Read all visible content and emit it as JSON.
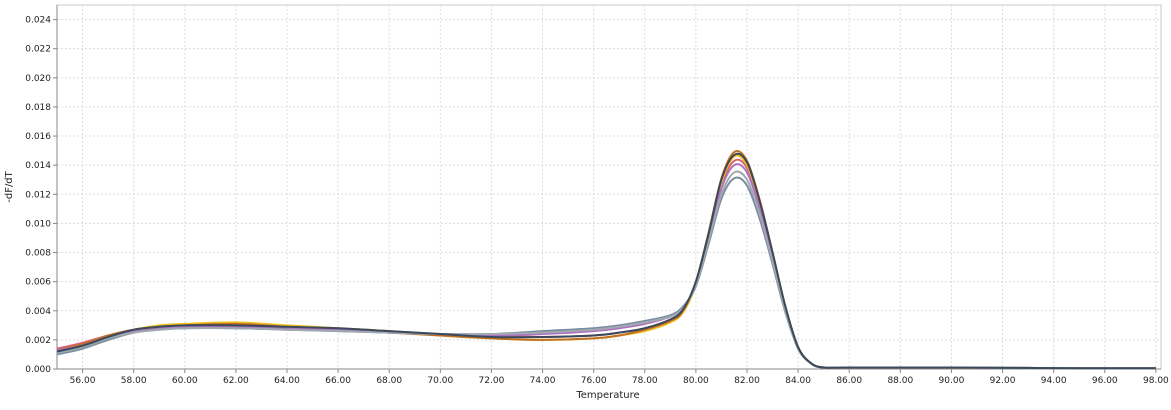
{
  "chart_data": {
    "type": "line",
    "title": "",
    "xlabel": "Temperature",
    "ylabel": "-dF/dT",
    "xlim": [
      55.0,
      98.2
    ],
    "ylim": [
      0.0,
      0.025
    ],
    "x_ticks": [
      56,
      58,
      60,
      62,
      64,
      66,
      68,
      70,
      72,
      74,
      76,
      78,
      80,
      82,
      84,
      86,
      88,
      90,
      92,
      94,
      96,
      98
    ],
    "x_tick_labels": [
      "56.00",
      "58.00",
      "60.00",
      "62.00",
      "64.00",
      "66.00",
      "68.00",
      "70.00",
      "72.00",
      "74.00",
      "76.00",
      "78.00",
      "80.00",
      "82.00",
      "84.00",
      "86.00",
      "88.00",
      "90.00",
      "92.00",
      "94.00",
      "96.00",
      "98.00"
    ],
    "y_ticks": [
      0.0,
      0.002,
      0.004,
      0.006,
      0.008,
      0.01,
      0.012,
      0.014,
      0.016,
      0.018,
      0.02,
      0.022,
      0.024
    ],
    "y_tick_labels": [
      "0.000",
      "0.002",
      "0.004",
      "0.006",
      "0.008",
      "0.010",
      "0.012",
      "0.014",
      "0.016",
      "0.018",
      "0.020",
      "0.022",
      "0.024"
    ],
    "grid": true,
    "legend": "none",
    "series": [
      {
        "color": "#e06070",
        "x": [
          55.0,
          56.0,
          57.0,
          58.0,
          59.0,
          60.0,
          62.0,
          64.0,
          66.0,
          68.0,
          70.0,
          72.0,
          74.0,
          76.0,
          77.0,
          78.0,
          79.0,
          79.5,
          80.0,
          80.5,
          81.0,
          81.5,
          82.0,
          82.5,
          83.0,
          83.5,
          84.0,
          84.5,
          85.0,
          86.0,
          90.0,
          95.0,
          98.0
        ],
        "y": [
          0.0014,
          0.0018,
          0.0023,
          0.0027,
          0.0029,
          0.003,
          0.003,
          0.0029,
          0.0028,
          0.0026,
          0.0024,
          0.0023,
          0.0022,
          0.0023,
          0.0025,
          0.0028,
          0.0034,
          0.004,
          0.0058,
          0.009,
          0.0126,
          0.0143,
          0.0138,
          0.0112,
          0.0078,
          0.0042,
          0.0015,
          0.0004,
          0.0001,
          0.0001,
          0.0001,
          5e-05,
          5e-05
        ]
      },
      {
        "color": "#f0c020",
        "x": [
          55.0,
          56.0,
          57.0,
          58.0,
          59.0,
          60.0,
          62.0,
          64.0,
          66.0,
          68.0,
          70.0,
          72.0,
          74.0,
          76.0,
          77.0,
          78.0,
          79.0,
          79.5,
          80.0,
          80.5,
          81.0,
          81.5,
          82.0,
          82.5,
          83.0,
          83.5,
          84.0,
          84.5,
          85.0,
          86.0,
          90.0,
          95.0,
          98.0
        ],
        "y": [
          0.0012,
          0.0016,
          0.0022,
          0.0027,
          0.003,
          0.0031,
          0.0032,
          0.003,
          0.0028,
          0.0026,
          0.0023,
          0.0021,
          0.002,
          0.0021,
          0.0023,
          0.0026,
          0.0032,
          0.0039,
          0.0058,
          0.0092,
          0.0128,
          0.0146,
          0.014,
          0.0114,
          0.0079,
          0.0043,
          0.0015,
          0.0004,
          0.0001,
          0.0001,
          0.0001,
          5e-05,
          5e-05
        ]
      },
      {
        "color": "#c07020",
        "x": [
          55.0,
          56.0,
          57.0,
          58.0,
          59.0,
          60.0,
          62.0,
          64.0,
          66.0,
          68.0,
          70.0,
          72.0,
          74.0,
          76.0,
          77.0,
          78.0,
          79.0,
          79.5,
          80.0,
          80.5,
          81.0,
          81.5,
          82.0,
          82.5,
          83.0,
          83.5,
          84.0,
          84.5,
          85.0,
          86.0,
          90.0,
          95.0,
          98.0
        ],
        "y": [
          0.0013,
          0.0017,
          0.0023,
          0.0027,
          0.0029,
          0.003,
          0.0031,
          0.0029,
          0.0027,
          0.0025,
          0.0023,
          0.0021,
          0.002,
          0.0021,
          0.0023,
          0.0027,
          0.0033,
          0.004,
          0.006,
          0.0094,
          0.0131,
          0.0149,
          0.0143,
          0.0116,
          0.008,
          0.0043,
          0.0015,
          0.0004,
          0.0001,
          0.0001,
          0.0001,
          5e-05,
          5e-05
        ]
      },
      {
        "color": "#b070c0",
        "x": [
          55.0,
          56.0,
          57.0,
          58.0,
          59.0,
          60.0,
          62.0,
          64.0,
          66.0,
          68.0,
          70.0,
          72.0,
          74.0,
          76.0,
          77.0,
          78.0,
          79.0,
          79.5,
          80.0,
          80.5,
          81.0,
          81.5,
          82.0,
          82.5,
          83.0,
          83.5,
          84.0,
          84.5,
          85.0,
          86.0,
          90.0,
          95.0,
          98.0
        ],
        "y": [
          0.0013,
          0.0016,
          0.0022,
          0.0026,
          0.0028,
          0.0029,
          0.0029,
          0.0028,
          0.0027,
          0.0025,
          0.0024,
          0.0023,
          0.0024,
          0.0026,
          0.0028,
          0.0031,
          0.0036,
          0.0042,
          0.0058,
          0.009,
          0.0124,
          0.014,
          0.0135,
          0.011,
          0.0076,
          0.0041,
          0.0014,
          0.0004,
          0.0001,
          0.0001,
          0.0001,
          5e-05,
          5e-05
        ]
      },
      {
        "color": "#7a8ca0",
        "x": [
          55.0,
          56.0,
          57.0,
          58.0,
          59.0,
          60.0,
          62.0,
          64.0,
          66.0,
          68.0,
          70.0,
          72.0,
          74.0,
          76.0,
          77.0,
          78.0,
          79.0,
          79.5,
          80.0,
          80.5,
          81.0,
          81.5,
          82.0,
          82.5,
          83.0,
          83.5,
          84.0,
          84.5,
          85.0,
          86.0,
          90.0,
          95.0,
          98.0
        ],
        "y": [
          0.001,
          0.0014,
          0.002,
          0.0025,
          0.0027,
          0.0028,
          0.0028,
          0.0027,
          0.0026,
          0.0025,
          0.0024,
          0.0024,
          0.0026,
          0.0028,
          0.003,
          0.0033,
          0.0037,
          0.0043,
          0.0057,
          0.0086,
          0.0117,
          0.0131,
          0.0126,
          0.0103,
          0.0072,
          0.0039,
          0.0014,
          0.0004,
          0.0001,
          0.0001,
          0.0001,
          5e-05,
          5e-05
        ]
      },
      {
        "color": "#a0a8b0",
        "x": [
          55.0,
          56.0,
          57.0,
          58.0,
          59.0,
          60.0,
          62.0,
          64.0,
          66.0,
          68.0,
          70.0,
          72.0,
          74.0,
          76.0,
          77.0,
          78.0,
          79.0,
          79.5,
          80.0,
          80.5,
          81.0,
          81.5,
          82.0,
          82.5,
          83.0,
          83.5,
          84.0,
          84.5,
          85.0,
          86.0,
          90.0,
          95.0,
          98.0
        ],
        "y": [
          0.0011,
          0.0015,
          0.0021,
          0.0025,
          0.0027,
          0.0028,
          0.0028,
          0.0027,
          0.0026,
          0.0025,
          0.0024,
          0.0024,
          0.0025,
          0.0027,
          0.0029,
          0.0032,
          0.0036,
          0.0042,
          0.0058,
          0.0088,
          0.012,
          0.0135,
          0.013,
          0.0106,
          0.0074,
          0.004,
          0.0014,
          0.0004,
          0.0001,
          0.0001,
          0.0001,
          5e-05,
          5e-05
        ]
      },
      {
        "color": "#3a4a5c",
        "x": [
          55.0,
          56.0,
          57.0,
          58.0,
          59.0,
          60.0,
          62.0,
          64.0,
          66.0,
          68.0,
          70.0,
          72.0,
          74.0,
          76.0,
          77.0,
          78.0,
          79.0,
          79.5,
          80.0,
          80.5,
          81.0,
          81.5,
          82.0,
          82.5,
          83.0,
          83.5,
          84.0,
          84.5,
          85.0,
          86.0,
          90.0,
          95.0,
          98.0
        ],
        "y": [
          0.0012,
          0.0016,
          0.0022,
          0.0027,
          0.0029,
          0.003,
          0.003,
          0.0029,
          0.0028,
          0.0026,
          0.0024,
          0.0022,
          0.0022,
          0.0023,
          0.0025,
          0.0028,
          0.0034,
          0.0041,
          0.006,
          0.0093,
          0.013,
          0.0147,
          0.0142,
          0.0115,
          0.008,
          0.0043,
          0.0015,
          0.0004,
          0.0001,
          0.0001,
          0.0001,
          5e-05,
          5e-05
        ]
      }
    ]
  }
}
